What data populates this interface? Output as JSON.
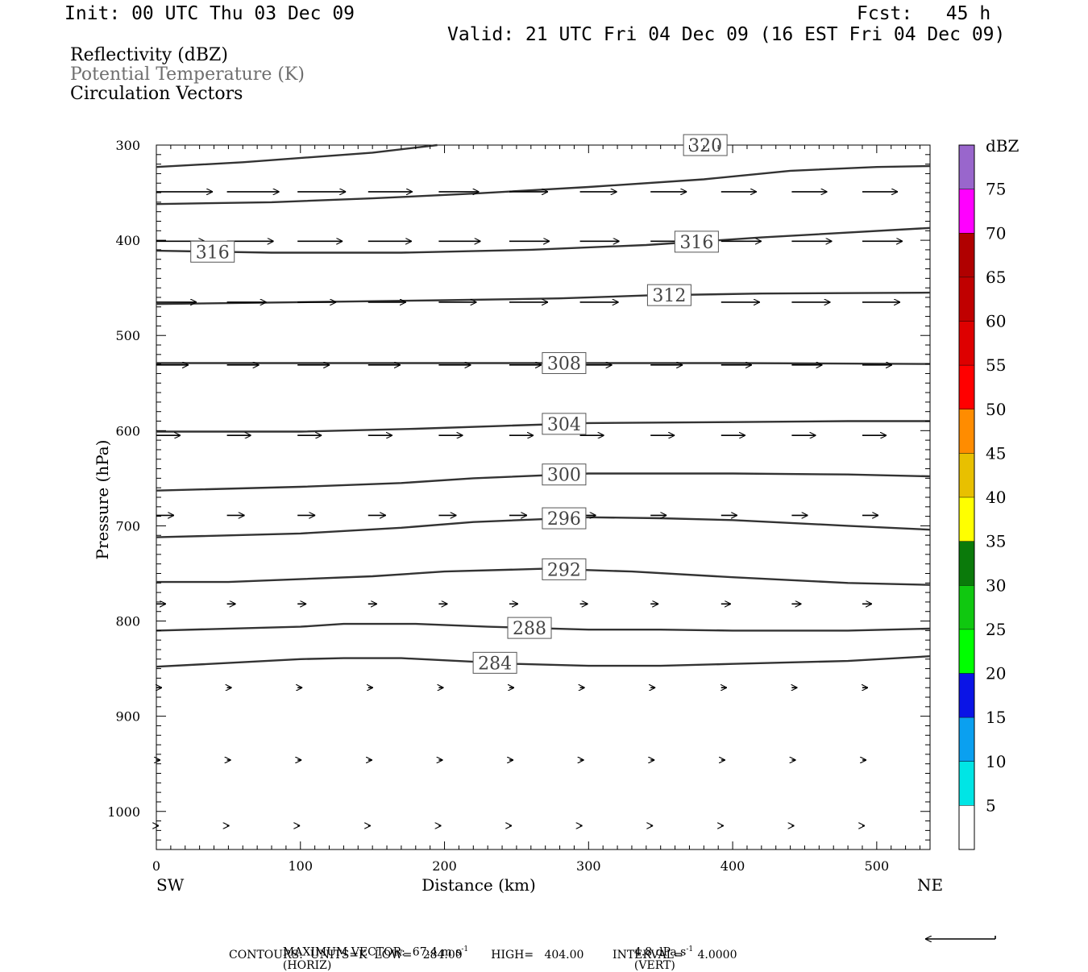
{
  "header": {
    "init": "Init: 00 UTC Thu 03 Dec 09",
    "fcst": "Fcst:   45 h",
    "valid": "Valid: 21 UTC Fri 04 Dec 09 (16 EST Fri 04 Dec 09)"
  },
  "legend_lines": {
    "reflectivity": "Reflectivity (dBZ)",
    "potential_temperature": "Potential Temperature (K)",
    "circulation": "Circulation Vectors"
  },
  "footer": {
    "max_vector_prefix": "MAXIMUM VECTOR:  67.4 m s",
    "max_vector_horiz": "(HORIZ)",
    "max_vector_vert_prefix": "4.8 dPa s",
    "max_vector_vert": "(VERT)",
    "exponent": "-1",
    "contours": "CONTOURS:  UNITS=K  LOW=   284.00        HIGH=   404.00        INTERVAL=    4.0000"
  },
  "colors": {
    "contour": "#333333",
    "arrow": "#000000"
  },
  "chart_data": {
    "type": "line",
    "xlabel": "Distance (km)",
    "ylabel": "Pressure (hPa)",
    "x_left_label": "SW",
    "x_right_label": "NE",
    "xlim": [
      0,
      537
    ],
    "ylim": [
      300,
      1040
    ],
    "y_inverted": true,
    "x_ticks": [
      0,
      100,
      200,
      300,
      400,
      500
    ],
    "y_ticks": [
      300,
      400,
      500,
      600,
      700,
      800,
      900,
      1000
    ],
    "colorbar": {
      "unit": "dBZ",
      "levels": [
        5,
        10,
        15,
        20,
        25,
        30,
        35,
        40,
        45,
        50,
        55,
        60,
        65,
        70,
        75
      ],
      "colors": [
        "#00e5e5",
        "#0aa0f0",
        "#0a14e6",
        "#00ff00",
        "#10c810",
        "#0a7a0a",
        "#ffff00",
        "#e8c000",
        "#ff8c00",
        "#ff0000",
        "#de0000",
        "#c00000",
        "#b00000",
        "#ff00ff",
        "#9966cc"
      ]
    },
    "theta_contours": [
      {
        "value": 284,
        "label": "284",
        "label_x": 220,
        "points": [
          [
            0,
            848
          ],
          [
            100,
            840
          ],
          [
            130,
            839
          ],
          [
            170,
            839
          ],
          [
            250,
            845
          ],
          [
            300,
            847
          ],
          [
            350,
            847
          ],
          [
            400,
            845
          ],
          [
            480,
            842
          ],
          [
            537,
            837
          ]
        ]
      },
      {
        "value": 288,
        "label": "288",
        "label_x": 244,
        "points": [
          [
            0,
            810
          ],
          [
            100,
            806
          ],
          [
            130,
            803
          ],
          [
            180,
            803
          ],
          [
            230,
            806
          ],
          [
            300,
            809
          ],
          [
            350,
            809
          ],
          [
            400,
            810
          ],
          [
            480,
            810
          ],
          [
            537,
            808
          ]
        ]
      },
      {
        "value": 292,
        "label": "292",
        "label_x": 268,
        "points": [
          [
            0,
            759
          ],
          [
            50,
            759
          ],
          [
            150,
            753
          ],
          [
            200,
            748
          ],
          [
            270,
            745
          ],
          [
            330,
            748
          ],
          [
            400,
            754
          ],
          [
            480,
            760
          ],
          [
            537,
            762
          ]
        ]
      },
      {
        "value": 296,
        "label": "296",
        "label_x": 268,
        "points": [
          [
            0,
            712
          ],
          [
            100,
            708
          ],
          [
            170,
            702
          ],
          [
            220,
            696
          ],
          [
            300,
            691
          ],
          [
            350,
            692
          ],
          [
            400,
            694
          ],
          [
            480,
            700
          ],
          [
            537,
            704
          ]
        ]
      },
      {
        "value": 300,
        "label": "300",
        "label_x": 268,
        "points": [
          [
            0,
            663
          ],
          [
            100,
            659
          ],
          [
            170,
            655
          ],
          [
            220,
            650
          ],
          [
            300,
            645
          ],
          [
            350,
            645
          ],
          [
            400,
            645
          ],
          [
            480,
            646
          ],
          [
            537,
            648
          ]
        ]
      },
      {
        "value": 304,
        "label": "304",
        "label_x": 268,
        "points": [
          [
            0,
            601
          ],
          [
            100,
            601
          ],
          [
            180,
            598
          ],
          [
            240,
            595
          ],
          [
            300,
            592
          ],
          [
            400,
            591
          ],
          [
            480,
            590
          ],
          [
            537,
            590
          ]
        ]
      },
      {
        "value": 308,
        "label": "308",
        "label_x": 268,
        "points": [
          [
            0,
            529
          ],
          [
            100,
            529
          ],
          [
            200,
            529
          ],
          [
            300,
            529
          ],
          [
            400,
            529
          ],
          [
            537,
            530
          ]
        ]
      },
      {
        "value": 312,
        "label": "312",
        "label_x": 341,
        "points": [
          [
            0,
            467
          ],
          [
            100,
            465
          ],
          [
            200,
            463
          ],
          [
            280,
            461
          ],
          [
            340,
            458
          ],
          [
            420,
            456
          ],
          [
            537,
            455
          ]
        ]
      },
      {
        "value": 316,
        "label": "316",
        "label_x": 24,
        "label2_x": 360,
        "points": [
          [
            0,
            411
          ],
          [
            80,
            413
          ],
          [
            170,
            413
          ],
          [
            260,
            410
          ],
          [
            340,
            405
          ],
          [
            420,
            397
          ],
          [
            537,
            387
          ]
        ]
      },
      {
        "value": 320,
        "label": "320",
        "label_x": 366,
        "points": [
          [
            0,
            323
          ],
          [
            60,
            318
          ],
          [
            150,
            308
          ],
          [
            195,
            300
          ]
        ]
      },
      {
        "value": 320,
        "label": "",
        "points": [
          [
            0,
            362
          ],
          [
            80,
            360
          ],
          [
            150,
            356
          ],
          [
            220,
            351
          ],
          [
            300,
            344
          ],
          [
            380,
            336
          ],
          [
            440,
            327
          ],
          [
            500,
            323
          ],
          [
            537,
            322
          ]
        ]
      }
    ],
    "vectors": {
      "x": [
        0,
        49,
        98,
        147,
        196,
        245,
        294,
        343,
        392,
        441,
        490
      ],
      "levels": [
        {
          "p": 349,
          "u": [
            70,
            65,
            60,
            55,
            50,
            48,
            46,
            45,
            44,
            44,
            44
          ]
        },
        {
          "p": 401,
          "u": [
            60,
            58,
            56,
            54,
            52,
            50,
            49,
            50,
            50,
            50,
            50
          ]
        },
        {
          "p": 465,
          "u": [
            50,
            49,
            48,
            47,
            47,
            48,
            48,
            48,
            48,
            48,
            47
          ]
        },
        {
          "p": 531,
          "u": [
            40,
            40,
            40,
            40,
            40,
            40,
            40,
            40,
            38,
            38,
            37
          ]
        },
        {
          "p": 605,
          "u": [
            30,
            30,
            30,
            30,
            30,
            30,
            30,
            30,
            30,
            30,
            30
          ]
        },
        {
          "p": 689,
          "u": [
            22,
            22,
            22,
            22,
            22,
            22,
            20,
            20,
            20,
            20,
            20
          ]
        },
        {
          "p": 782,
          "u": [
            12,
            11,
            11,
            11,
            11,
            11,
            10,
            10,
            12,
            12,
            12
          ]
        },
        {
          "p": 870,
          "u": [
            7,
            6,
            6,
            6,
            6,
            6,
            6,
            6,
            7,
            7,
            7
          ]
        },
        {
          "p": 946,
          "u": [
            5,
            5,
            5,
            5,
            5,
            5,
            5,
            5,
            5,
            5,
            5
          ]
        },
        {
          "p": 1015,
          "u": [
            3,
            3,
            3,
            3,
            3,
            3,
            3,
            3,
            3,
            3,
            3
          ]
        }
      ]
    }
  }
}
